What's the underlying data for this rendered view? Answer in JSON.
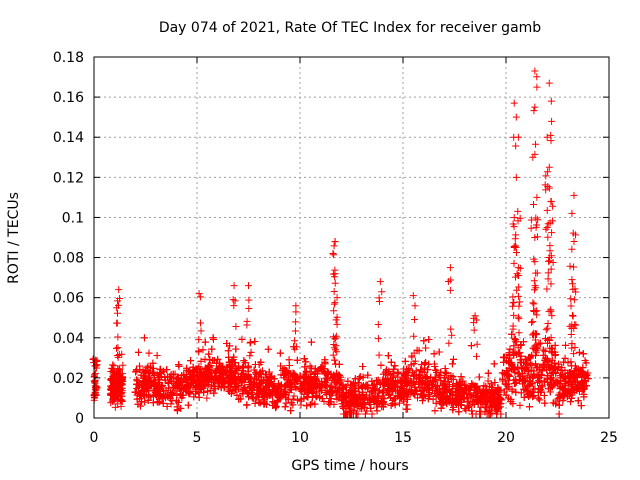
{
  "chart_data": {
    "type": "scatter",
    "title": "Day 074 of 2021, Rate Of TEC Index for receiver gamb",
    "xlabel": "GPS time / hours",
    "ylabel": "ROTI / TECUs",
    "xlim": [
      0,
      25
    ],
    "ylim": [
      0,
      0.18
    ],
    "xticks": [
      0,
      5,
      10,
      15,
      20,
      25
    ],
    "yticks": [
      0,
      0.02,
      0.04,
      0.06,
      0.08,
      0.1,
      0.12,
      0.14,
      0.16,
      0.18
    ],
    "xtick_labels": [
      "0",
      "5",
      "10",
      "15",
      "20",
      "25"
    ],
    "ytick_labels": [
      "0",
      "0.02",
      "0.04",
      "0.06",
      "0.08",
      "0.1",
      "0.12",
      "0.14",
      "0.16",
      "0.18"
    ],
    "grid": true,
    "marker": "+",
    "color": "#ff0000",
    "series": [
      {
        "name": "ROTI",
        "envelope": {
          "x_ranges": [
            [
              0.0,
              0.1
            ],
            [
              0.8,
              1.4
            ],
            [
              2.0,
              24.0
            ]
          ],
          "typical_range": [
            0.004,
            0.035
          ]
        },
        "highlights": [
          {
            "x": 0.05,
            "y": 0.026
          },
          {
            "x": 0.05,
            "y": 0.012
          },
          {
            "x": 1.2,
            "y": 0.064
          },
          {
            "x": 1.1,
            "y": 0.055
          },
          {
            "x": 5.1,
            "y": 0.062
          },
          {
            "x": 6.8,
            "y": 0.066
          },
          {
            "x": 7.5,
            "y": 0.066
          },
          {
            "x": 9.8,
            "y": 0.056
          },
          {
            "x": 11.7,
            "y": 0.088
          },
          {
            "x": 11.6,
            "y": 0.082
          },
          {
            "x": 11.7,
            "y": 0.072
          },
          {
            "x": 11.8,
            "y": 0.06
          },
          {
            "x": 13.9,
            "y": 0.068
          },
          {
            "x": 15.5,
            "y": 0.061
          },
          {
            "x": 17.3,
            "y": 0.075
          },
          {
            "x": 18.5,
            "y": 0.051
          },
          {
            "x": 20.4,
            "y": 0.157
          },
          {
            "x": 20.5,
            "y": 0.15
          },
          {
            "x": 20.6,
            "y": 0.14
          },
          {
            "x": 20.5,
            "y": 0.12
          },
          {
            "x": 20.4,
            "y": 0.1
          },
          {
            "x": 20.4,
            "y": 0.085
          },
          {
            "x": 20.6,
            "y": 0.075
          },
          {
            "x": 21.4,
            "y": 0.173
          },
          {
            "x": 21.5,
            "y": 0.165
          },
          {
            "x": 21.4,
            "y": 0.155
          },
          {
            "x": 21.3,
            "y": 0.13
          },
          {
            "x": 21.5,
            "y": 0.11
          },
          {
            "x": 21.4,
            "y": 0.09
          },
          {
            "x": 21.4,
            "y": 0.078
          },
          {
            "x": 22.1,
            "y": 0.167
          },
          {
            "x": 22.2,
            "y": 0.158
          },
          {
            "x": 22.0,
            "y": 0.14
          },
          {
            "x": 22.1,
            "y": 0.125
          },
          {
            "x": 22.2,
            "y": 0.108
          },
          {
            "x": 22.0,
            "y": 0.095
          },
          {
            "x": 22.1,
            "y": 0.08
          },
          {
            "x": 23.3,
            "y": 0.111
          },
          {
            "x": 23.2,
            "y": 0.102
          },
          {
            "x": 23.3,
            "y": 0.088
          },
          {
            "x": 23.2,
            "y": 0.069
          }
        ]
      }
    ]
  }
}
